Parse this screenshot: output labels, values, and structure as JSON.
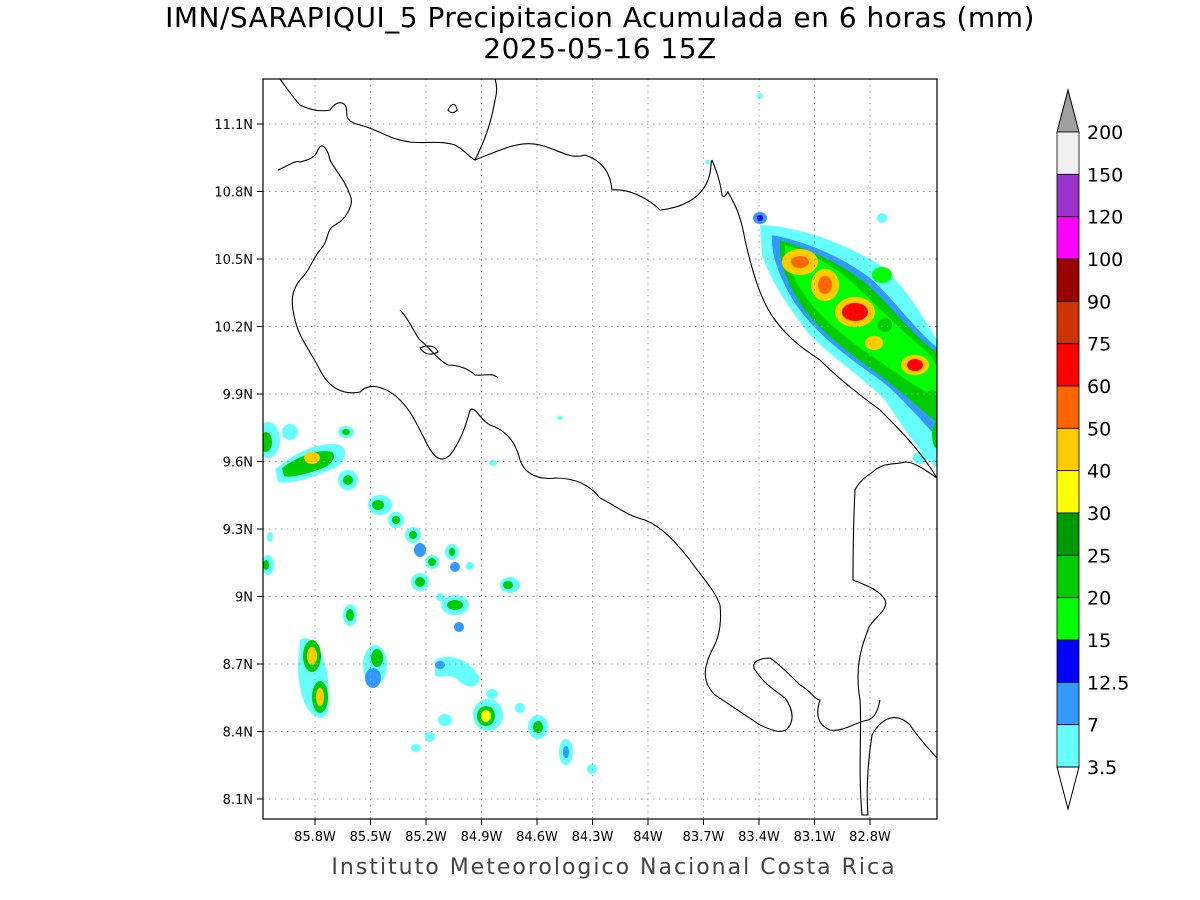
{
  "title": {
    "line1": "IMN/SARAPIQUI_5 Precipitacion Acumulada en 6 horas (mm)",
    "line2": "2025-05-16 15Z"
  },
  "footer": "Instituto Meteorologico Nacional Costa Rica",
  "map": {
    "lon_labels": [
      "85.8W",
      "85.5W",
      "85.2W",
      "84.9W",
      "84.6W",
      "84.3W",
      "84W",
      "83.7W",
      "83.4W",
      "83.1W",
      "82.8W"
    ],
    "lat_labels": [
      "11.1N",
      "10.8N",
      "10.5N",
      "10.2N",
      "9.9N",
      "9.6N",
      "9.3N",
      "9N",
      "8.7N",
      "8.4N",
      "8.1N"
    ],
    "grid": true
  },
  "colorbar": {
    "labels": [
      "200",
      "150",
      "120",
      "100",
      "90",
      "75",
      "60",
      "50",
      "40",
      "30",
      "25",
      "20",
      "15",
      "12.5",
      "7",
      "3.5"
    ],
    "colors": [
      "#f0f0f0",
      "#9933cc",
      "#ff00ff",
      "#990000",
      "#cc3300",
      "#ff0000",
      "#ff6600",
      "#ffcc00",
      "#ffff00",
      "#009900",
      "#00cc00",
      "#00ff00",
      "#0000ff",
      "#3399ff",
      "#66ffff"
    ],
    "top_arrow_color": "#a0a0a0",
    "bottom_arrow_color": "#ffffff"
  }
}
